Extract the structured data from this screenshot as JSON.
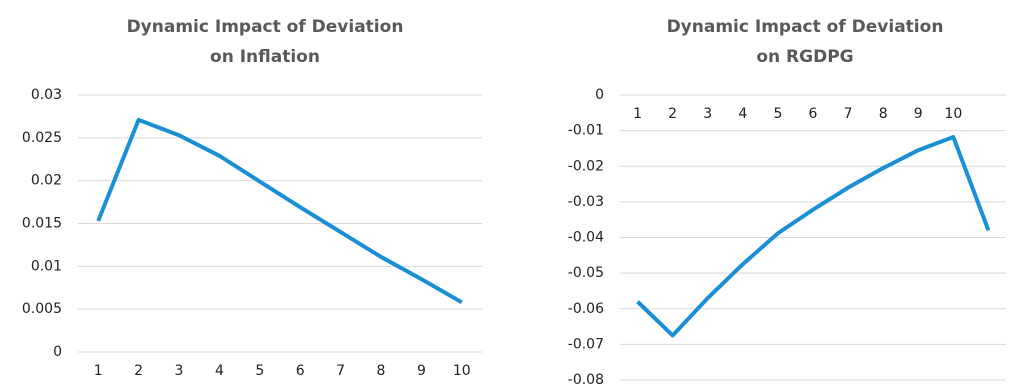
{
  "chart_data": [
    {
      "type": "line",
      "title": "Dynamic Impact of Deviation on Inflation",
      "categories": [
        "1",
        "2",
        "3",
        "4",
        "5",
        "6",
        "7",
        "8",
        "9",
        "10"
      ],
      "series": [
        {
          "color": "#1a8fd6",
          "values": [
            0.0153,
            0.0271,
            0.0253,
            0.0229,
            0.0199,
            0.0169,
            0.014,
            0.0111,
            0.0085,
            0.0058
          ]
        }
      ],
      "ylim": [
        0,
        0.03
      ],
      "yticks": [
        0,
        0.005,
        0.01,
        0.015,
        0.02,
        0.025,
        0.03
      ],
      "grid": true
    },
    {
      "type": "line",
      "title": "Dynamic Impact of Deviation on RGDPG",
      "categories": [
        "1",
        "2",
        "3",
        "4",
        "5",
        "6",
        "7",
        "8",
        "9",
        "10",
        null
      ],
      "series": [
        {
          "color": "#1a8fd6",
          "values": [
            -0.058,
            -0.0675,
            -0.057,
            -0.0475,
            -0.0388,
            -0.0322,
            -0.026,
            -0.0205,
            -0.0155,
            -0.0118,
            -0.038
          ]
        }
      ],
      "ylim": [
        -0.08,
        0
      ],
      "yticks": [
        0,
        -0.01,
        -0.02,
        -0.03,
        -0.04,
        -0.05,
        -0.06,
        -0.07,
        -0.08
      ],
      "grid": true
    }
  ]
}
